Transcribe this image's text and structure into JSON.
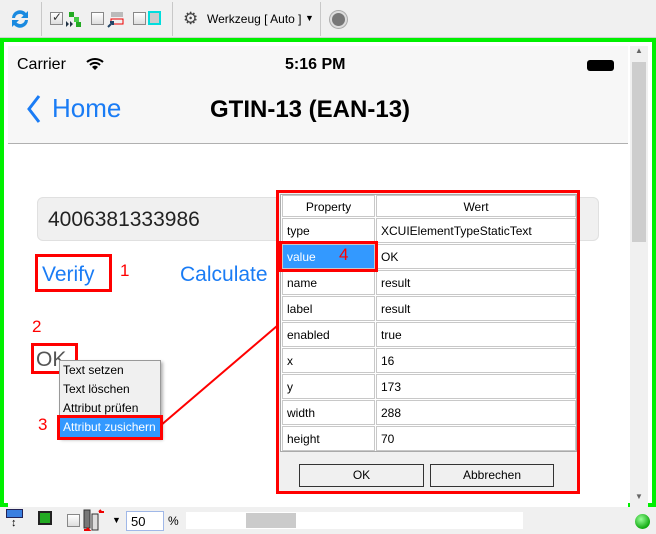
{
  "toolbar": {
    "tool_label": "Werkzeug [ Auto ]",
    "icons": [
      "refresh-icon",
      "checkbox-checked",
      "move-icon",
      "checkbox",
      "overlay-icon",
      "checkbox",
      "highlight-icon",
      "gear-icon",
      "dropdown-arrow",
      "record-icon"
    ]
  },
  "phone": {
    "status": {
      "carrier": "Carrier",
      "time": "5:16 PM"
    },
    "nav": {
      "back_label": "Home",
      "title": "GTIN-13 (EAN-13)"
    },
    "input_value": "4006381333986",
    "verify_label": "Verify",
    "calculate_label": "Calculate",
    "result_text": "OK"
  },
  "annotations": {
    "n1": "1",
    "n2": "2",
    "n3": "3",
    "n4": "4",
    "color": "#ff0000"
  },
  "context_menu": {
    "items": [
      "Text setzen",
      "Text löschen",
      "Attribut prüfen",
      "Attribut zusichern"
    ],
    "selected": "Attribut zusichern"
  },
  "dialog": {
    "headers": [
      "Property",
      "Wert"
    ],
    "rows": [
      [
        "type",
        "XCUIElementTypeStaticText"
      ],
      [
        "value",
        "OK"
      ],
      [
        "name",
        "result"
      ],
      [
        "label",
        "result"
      ],
      [
        "enabled",
        "true"
      ],
      [
        "x",
        "16"
      ],
      [
        "y",
        "173"
      ],
      [
        "width",
        "288"
      ],
      [
        "height",
        "70"
      ]
    ],
    "selected_row": "value",
    "ok_label": "OK",
    "cancel_label": "Abbrechen"
  },
  "bottombar": {
    "zoom_value": "50",
    "zoom_unit": "%"
  },
  "colors": {
    "highlight_frame": "#00f000",
    "ios_blue": "#1a7cf5",
    "selection": "#3399ff"
  }
}
